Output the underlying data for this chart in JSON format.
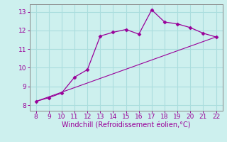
{
  "x": [
    8,
    9,
    10,
    11,
    12,
    13,
    14,
    15,
    16,
    17,
    18,
    19,
    20,
    21,
    22
  ],
  "y": [
    8.2,
    8.4,
    8.65,
    9.5,
    9.9,
    11.7,
    11.9,
    12.05,
    11.8,
    13.1,
    12.45,
    12.35,
    12.15,
    11.85,
    11.65
  ],
  "line_color": "#990099",
  "marker": "D",
  "marker_size": 2.5,
  "bg_color": "#cdf0ee",
  "grid_color": "#aadddd",
  "xlabel": "Windchill (Refroidissement éolien,°C)",
  "xlabel_color": "#990099",
  "xlim": [
    7.5,
    22.5
  ],
  "ylim": [
    7.7,
    13.4
  ],
  "xticks": [
    8,
    9,
    10,
    11,
    12,
    13,
    14,
    15,
    16,
    17,
    18,
    19,
    20,
    21,
    22
  ],
  "yticks": [
    8,
    9,
    10,
    11,
    12,
    13
  ],
  "tick_color": "#990099",
  "tick_labelsize": 6.5,
  "xlabel_fontsize": 7,
  "ref_line_x": [
    8,
    22
  ],
  "ref_line_y": [
    8.2,
    11.65
  ]
}
